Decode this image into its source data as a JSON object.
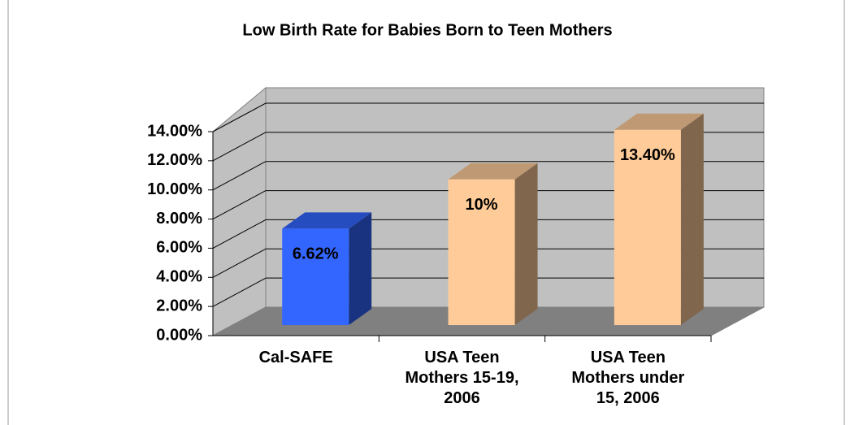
{
  "chart_data": {
    "type": "bar3d",
    "title": "Low Birth Rate for Babies Born to Teen Mothers",
    "categories": [
      "Cal-SAFE",
      "USA Teen Mothers 15-19, 2006",
      "USA Teen Mothers under 15, 2006"
    ],
    "values": [
      6.62,
      10,
      13.4
    ],
    "value_labels": [
      "6.62%",
      "10%",
      "13.40%"
    ],
    "colors": [
      "#3366ff",
      "#ffcc99",
      "#ffcc99"
    ],
    "ylim": [
      0,
      14
    ],
    "yticks": [
      {
        "value": 0,
        "label": "0.00%"
      },
      {
        "value": 2,
        "label": "2.00%"
      },
      {
        "value": 4,
        "label": "4.00%"
      },
      {
        "value": 6,
        "label": "6.00%"
      },
      {
        "value": 8,
        "label": "8.00%"
      },
      {
        "value": 10,
        "label": "10.00%"
      },
      {
        "value": 12,
        "label": "12.00%"
      },
      {
        "value": 14,
        "label": "14.00%"
      }
    ],
    "grid": true
  }
}
